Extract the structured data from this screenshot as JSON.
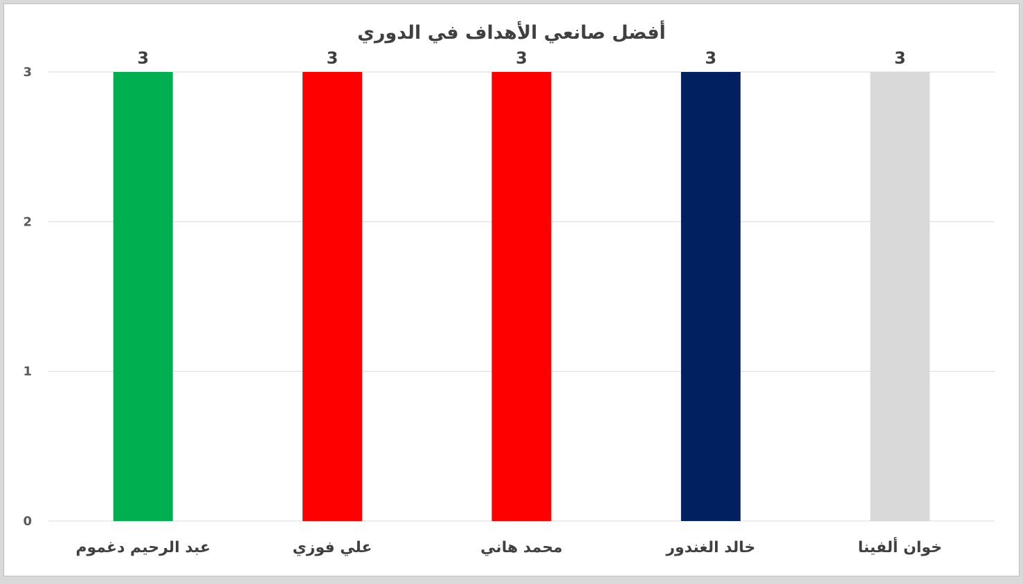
{
  "chart_data": {
    "type": "bar",
    "title": "أفضل صانعي الأهداف في الدوري",
    "xlabel": "",
    "ylabel": "",
    "categories": [
      "عبد الرحيم دغموم",
      "علي فوزي",
      "محمد هاني",
      "خالد الغندور",
      "خوان ألفينا"
    ],
    "values": [
      3,
      3,
      3,
      3,
      3
    ],
    "bar_colors": [
      "#00b050",
      "#ff0000",
      "#ff0000",
      "#002060",
      "#d9d9d9"
    ],
    "data_labels": [
      "3",
      "3",
      "3",
      "3",
      "3"
    ],
    "yticks": [
      "0",
      "1",
      "2",
      "3"
    ],
    "ylim": [
      0,
      3
    ],
    "grid": true,
    "legend": "none"
  },
  "colors": {
    "background": "#ffffff",
    "gridline": "#d9d9d9",
    "text": "#404040"
  }
}
